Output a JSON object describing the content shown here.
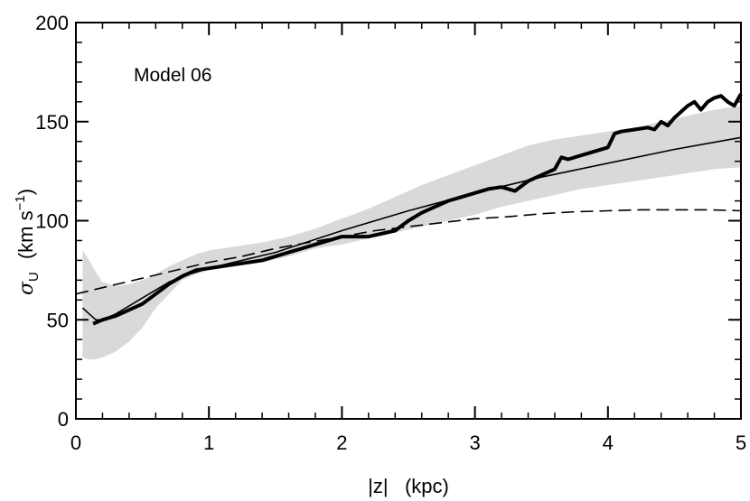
{
  "chart_data": {
    "type": "line",
    "title": "",
    "annotation": "Model 06",
    "xlabel": "|z|   (kpc)",
    "ylabel_parts": {
      "main": "σ",
      "sub": "U",
      "units": "(km s",
      "sup": "−1",
      "close": ")"
    },
    "xlim": [
      0,
      5
    ],
    "ylim": [
      0,
      200
    ],
    "x_ticks": [
      0,
      1,
      2,
      3,
      4,
      5
    ],
    "x_tick_labels": [
      "0",
      "1",
      "2",
      "3",
      "4",
      "5"
    ],
    "y_ticks": [
      0,
      50,
      100,
      150,
      200
    ],
    "y_tick_labels": [
      "0",
      "50",
      "100",
      "150",
      "200"
    ],
    "grid": false,
    "colors": {
      "band": "#d9d9d9",
      "line": "#000000"
    },
    "band": {
      "x": [
        0.05,
        0.1,
        0.15,
        0.2,
        0.3,
        0.4,
        0.5,
        0.6,
        0.7,
        0.8,
        0.9,
        1.0,
        1.2,
        1.4,
        1.6,
        1.8,
        2.0,
        2.2,
        2.4,
        2.6,
        2.8,
        3.0,
        3.2,
        3.4,
        3.6,
        3.8,
        4.0,
        4.2,
        4.4,
        4.6,
        4.8,
        5.0
      ],
      "upper": [
        85,
        80,
        74,
        69,
        67,
        68,
        70,
        73,
        77,
        80,
        83,
        85,
        87,
        89,
        92,
        96,
        101,
        106,
        112,
        118,
        123,
        128,
        133,
        138,
        141,
        143,
        145,
        147,
        150,
        153,
        156,
        158
      ],
      "lower": [
        31,
        30,
        30,
        31,
        34,
        39,
        46,
        56,
        63,
        70,
        73,
        75,
        77,
        79,
        82,
        86,
        88,
        91,
        94,
        97,
        100,
        103,
        107,
        110,
        113,
        116,
        118,
        120,
        122,
        124,
        126,
        127
      ]
    },
    "series": [
      {
        "style": "thick",
        "x": [
          0.13,
          0.2,
          0.3,
          0.4,
          0.5,
          0.6,
          0.7,
          0.8,
          0.9,
          1.0,
          1.2,
          1.4,
          1.6,
          1.8,
          2.0,
          2.2,
          2.4,
          2.5,
          2.6,
          2.7,
          2.8,
          2.9,
          3.0,
          3.1,
          3.2,
          3.3,
          3.4,
          3.5,
          3.6,
          3.65,
          3.7,
          3.8,
          3.9,
          4.0,
          4.05,
          4.1,
          4.2,
          4.3,
          4.35,
          4.4,
          4.45,
          4.5,
          4.55,
          4.6,
          4.65,
          4.7,
          4.75,
          4.8,
          4.85,
          4.9,
          4.95,
          5.0
        ],
        "y": [
          48,
          50,
          52,
          55,
          58,
          63,
          68,
          72,
          75,
          76,
          78,
          80,
          84,
          88,
          92,
          92,
          95,
          100,
          104,
          107,
          110,
          112,
          114,
          116,
          117,
          115,
          120,
          123,
          126,
          132,
          131,
          133,
          135,
          137,
          144,
          145,
          146,
          147,
          146,
          150,
          148,
          152,
          155,
          158,
          160,
          156,
          160,
          162,
          163,
          160,
          158,
          164
        ]
      },
      {
        "style": "thin",
        "x": [
          0.05,
          0.1,
          0.15,
          0.2,
          0.3,
          0.4,
          0.5,
          0.6,
          0.7,
          0.8,
          0.9,
          1.0,
          1.5,
          2.0,
          2.5,
          3.0,
          3.5,
          4.0,
          4.5,
          5.0
        ],
        "y": [
          56,
          53,
          50,
          50,
          53,
          57,
          61,
          65,
          69,
          72,
          74,
          76,
          84,
          95,
          105,
          114,
          122,
          129,
          136,
          142
        ]
      },
      {
        "style": "dashed",
        "x": [
          0.0,
          0.25,
          0.5,
          0.75,
          1.0,
          1.25,
          1.5,
          1.75,
          2.0,
          2.25,
          2.5,
          2.75,
          3.0,
          3.25,
          3.5,
          3.75,
          4.0,
          4.25,
          4.5,
          4.75,
          5.0
        ],
        "y": [
          63,
          67,
          71,
          75,
          79,
          82,
          86,
          89,
          92,
          95,
          97,
          99,
          101,
          102,
          103.5,
          104.5,
          105,
          105.5,
          105.5,
          105.5,
          105
        ]
      }
    ]
  }
}
